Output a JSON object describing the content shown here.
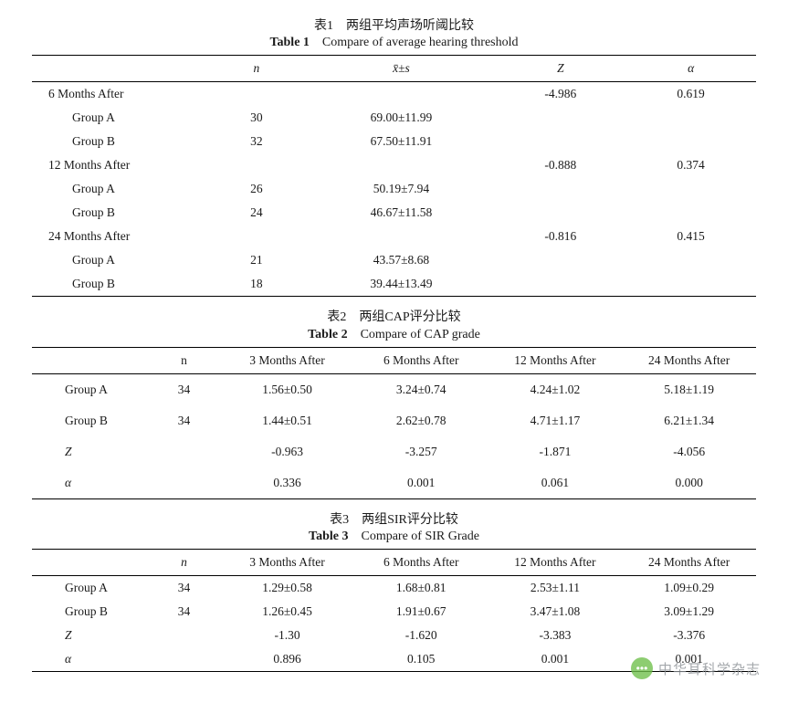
{
  "tables": [
    {
      "title_cn": "表1　两组平均声场听阈比较",
      "title_en_bold": "Table 1",
      "title_en_rest": "Compare of average hearing threshold",
      "headers": [
        "",
        "n",
        "x̄±s",
        "Z",
        "α"
      ],
      "header_styles": [
        "",
        "it",
        "xbar it",
        "it",
        "it"
      ],
      "indent_rows": true,
      "rows": [
        [
          "6 Months After",
          "",
          "",
          "-4.986",
          "0.619"
        ],
        [
          "Group A",
          "30",
          "69.00±11.99",
          "",
          ""
        ],
        [
          "Group B",
          "32",
          "67.50±11.91",
          "",
          ""
        ],
        [
          "12 Months After",
          "",
          "",
          "-0.888",
          "0.374"
        ],
        [
          "Group A",
          "26",
          "50.19±7.94",
          "",
          ""
        ],
        [
          "Group B",
          "24",
          "46.67±11.58",
          "",
          ""
        ],
        [
          "24 Months After",
          "",
          "",
          "-0.816",
          "0.415"
        ],
        [
          "Group A",
          "21",
          "43.57±8.68",
          "",
          ""
        ],
        [
          "Group B",
          "18",
          "39.44±13.49",
          "",
          ""
        ]
      ],
      "indent_flags": [
        false,
        true,
        true,
        false,
        true,
        true,
        false,
        true,
        true
      ],
      "col_widths": [
        "24%",
        "14%",
        "26%",
        "18%",
        "18%"
      ]
    },
    {
      "title_cn": "表2　两组CAP评分比较",
      "title_en_bold": "Table 2",
      "title_en_rest": "Compare of CAP grade",
      "headers": [
        "",
        "n",
        "3 Months After",
        "6 Months After",
        "12 Months After",
        "24 Months After"
      ],
      "header_styles": [
        "",
        "",
        "",
        "",
        "",
        ""
      ],
      "indent_rows": false,
      "rows": [
        [
          "Group A",
          "34",
          "1.56±0.50",
          "3.24±0.74",
          "4.24±1.02",
          "5.18±1.19"
        ],
        [
          "Group B",
          "34",
          "1.44±0.51",
          "2.62±0.78",
          "4.71±1.17",
          "6.21±1.34"
        ],
        [
          "Z",
          "",
          "-0.963",
          "-3.257",
          "-1.871",
          "-4.056"
        ],
        [
          "α",
          "",
          "0.336",
          "0.001",
          "0.061",
          "0.000"
        ]
      ],
      "row_label_styles": [
        "",
        "",
        "it",
        "it"
      ],
      "col_widths": [
        "16%",
        "10%",
        "18.5%",
        "18.5%",
        "18.5%",
        "18.5%"
      ],
      "row_pad": "9px"
    },
    {
      "title_cn": "表3　两组SIR评分比较",
      "title_en_bold": "Table 3",
      "title_en_rest": "Compare of SIR Grade",
      "headers": [
        "",
        "n",
        "3 Months After",
        "6 Months After",
        "12 Months After",
        "24 Months After"
      ],
      "header_styles": [
        "",
        "it",
        "",
        "",
        "",
        ""
      ],
      "indent_rows": false,
      "rows": [
        [
          "Group A",
          "34",
          "1.29±0.58",
          "1.68±0.81",
          "2.53±1.11",
          "1.09±0.29"
        ],
        [
          "Group B",
          "34",
          "1.26±0.45",
          "1.91±0.67",
          "3.47±1.08",
          "3.09±1.29"
        ],
        [
          "Z",
          "",
          "-1.30",
          "-1.620",
          "-3.383",
          "-3.376"
        ],
        [
          "α",
          "",
          "0.896",
          "0.105",
          "0.001",
          "0.001"
        ]
      ],
      "row_label_styles": [
        "",
        "",
        "it",
        "it"
      ],
      "col_widths": [
        "16%",
        "10%",
        "18.5%",
        "18.5%",
        "18.5%",
        "18.5%"
      ]
    }
  ],
  "watermark": {
    "icon_text": "•••",
    "label": "中华耳科学杂志"
  }
}
